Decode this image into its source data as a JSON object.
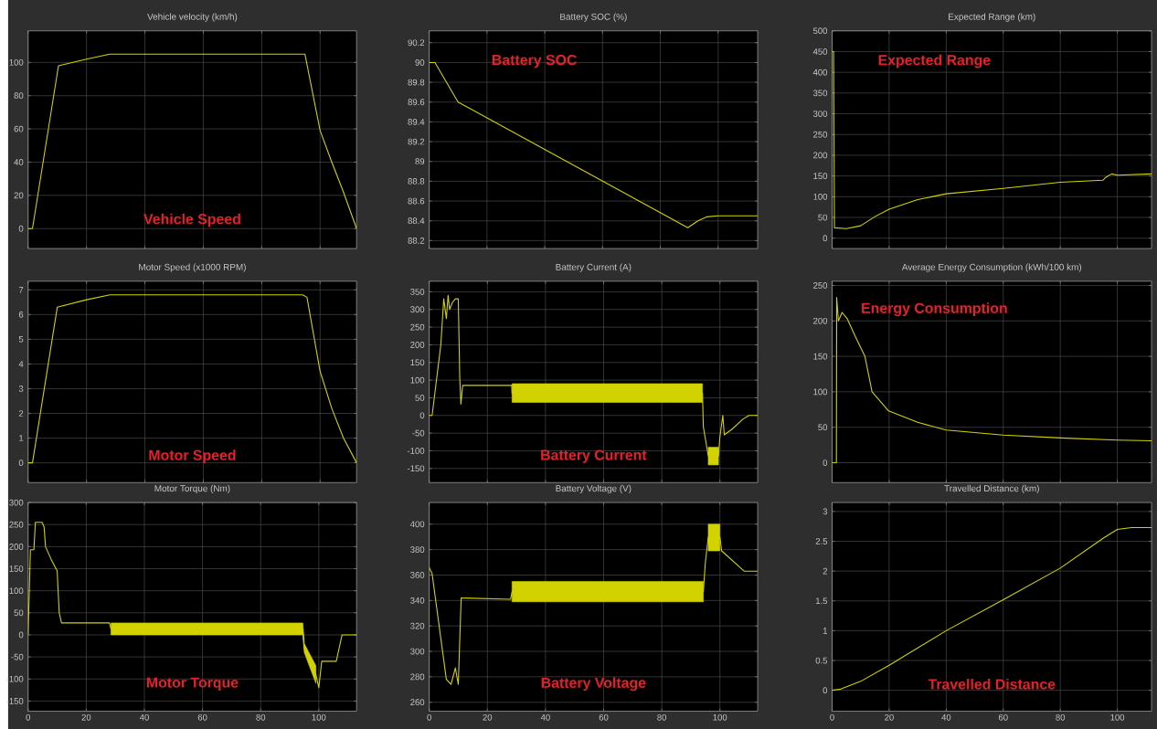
{
  "chart_data": [
    {
      "type": "line",
      "title": "Vehicle velocity (km/h)",
      "x": [
        0,
        1.5,
        10.4,
        20,
        28,
        94.8,
        100,
        104,
        108,
        112.5
      ],
      "series": [
        {
          "color": "#d2d200",
          "values": [
            0,
            0,
            98,
            102,
            105,
            105,
            59,
            40,
            22,
            0
          ]
        }
      ],
      "xlim": [
        0,
        112.5
      ],
      "ylim": [
        -12,
        119
      ],
      "xticks": [
        0,
        20,
        40,
        60,
        80,
        100
      ],
      "yticks": [
        0,
        20,
        40,
        60,
        80,
        100
      ],
      "tick_labels": "y",
      "grid": true,
      "annotations": [
        "Vehicle Speed"
      ]
    },
    {
      "type": "line",
      "title": "Battery SOC (%)",
      "x": [
        0,
        2,
        5,
        10,
        89.5,
        93,
        96,
        100,
        113.7
      ],
      "series": [
        {
          "color": "#d2d200",
          "values": [
            90,
            90,
            89.85,
            89.6,
            88.33,
            88.4,
            88.44,
            88.45,
            88.45
          ]
        }
      ],
      "xlim": [
        0,
        113.7
      ],
      "ylim": [
        88.12,
        90.32
      ],
      "xticks": [
        0,
        20,
        40,
        60,
        80,
        100
      ],
      "yticks": [
        88.2,
        88.4,
        88.6,
        88.8,
        89,
        89.2,
        89.4,
        89.6,
        89.8,
        90,
        90.2
      ],
      "tick_labels": "y",
      "grid": true,
      "annotations": [
        "Battery SOC"
      ]
    },
    {
      "type": "line",
      "title": "Expected Range (km)",
      "x": [
        0,
        0.5,
        0.8,
        5,
        10,
        15,
        20,
        30,
        40,
        60,
        80,
        95,
        96,
        98,
        100,
        112
      ],
      "series": [
        {
          "color": "#d2d200",
          "values": [
            450,
            450,
            25,
            23,
            30,
            52,
            70,
            93,
            107,
            120,
            135,
            140,
            147,
            155,
            152,
            155
          ]
        }
      ],
      "xlim": [
        0,
        112
      ],
      "ylim": [
        -25,
        500
      ],
      "xticks": [
        0,
        20,
        40,
        60,
        80,
        100
      ],
      "yticks": [
        0,
        50,
        100,
        150,
        200,
        250,
        300,
        350,
        400,
        450,
        500
      ],
      "tick_labels": "y",
      "grid": true,
      "annotations": [
        "Expected Range"
      ]
    },
    {
      "type": "line",
      "title": "Motor Speed (x1000 RPM)",
      "x": [
        0,
        1.5,
        10,
        20,
        28,
        94,
        95.5,
        100,
        104,
        108,
        112.5
      ],
      "series": [
        {
          "color": "#d2d200",
          "values": [
            0,
            0,
            6.3,
            6.6,
            6.8,
            6.8,
            6.7,
            3.7,
            2.2,
            1,
            0
          ]
        }
      ],
      "xlim": [
        0,
        112.5
      ],
      "ylim": [
        -0.8,
        7.35
      ],
      "xticks": [
        0,
        20,
        40,
        60,
        80,
        100
      ],
      "yticks": [
        0,
        1,
        2,
        3,
        4,
        5,
        6,
        7
      ],
      "tick_labels": "y",
      "grid": true,
      "annotations": [
        "Motor Speed"
      ]
    },
    {
      "type": "line",
      "title": "Battery Current (A)",
      "x": [
        0,
        1,
        4,
        5,
        5.9,
        6.5,
        7,
        8,
        9,
        10,
        10.5,
        10.9,
        11.5,
        28.4,
        28.5,
        94,
        94.3,
        96,
        99.5,
        100,
        101,
        101.5,
        104,
        108,
        110,
        113
      ],
      "series": [
        {
          "color": "#d2d200",
          "values": [
            0,
            0,
            200,
            330,
            274,
            340,
            300,
            320,
            330,
            330,
            110,
            32,
            85,
            85,
            63,
            63,
            -32,
            -115,
            -115,
            -60,
            0,
            -55,
            -40,
            -10,
            0,
            0
          ],
          "lower": [
            null,
            null,
            null,
            null,
            null,
            null,
            null,
            null,
            null,
            null,
            null,
            null,
            null,
            null,
            37,
            37,
            null,
            -140,
            -140,
            null,
            null,
            null,
            null,
            null,
            null,
            null
          ],
          "upper": [
            null,
            null,
            null,
            null,
            null,
            null,
            null,
            null,
            null,
            null,
            null,
            null,
            null,
            null,
            90,
            90,
            null,
            -90,
            -90,
            null,
            null,
            null,
            null,
            null,
            null,
            null
          ]
        }
      ],
      "xlim": [
        0,
        113
      ],
      "ylim": [
        -190,
        380
      ],
      "xticks": [
        0,
        20,
        40,
        60,
        80,
        100
      ],
      "yticks": [
        -150,
        -100,
        -50,
        0,
        50,
        100,
        150,
        200,
        250,
        300,
        350
      ],
      "tick_labels": "y",
      "grid": true,
      "annotations": [
        "Battery Current"
      ]
    },
    {
      "type": "line",
      "title": "Average Energy Consumption (kWh/100 km)",
      "x": [
        0,
        1.5,
        1.6,
        2.2,
        3.5,
        5.3,
        8.5,
        11.5,
        14,
        19.8,
        30,
        40,
        60,
        80,
        100,
        112
      ],
      "series": [
        {
          "color": "#d2d200",
          "values": [
            0,
            0,
            233,
            200,
            212,
            203,
            175,
            150,
            100,
            73,
            57,
            46,
            39,
            35,
            32,
            31
          ]
        }
      ],
      "xlim": [
        0,
        112
      ],
      "ylim": [
        -28,
        256
      ],
      "xticks": [
        0,
        20,
        40,
        60,
        80,
        100
      ],
      "yticks": [
        0,
        50,
        100,
        150,
        200,
        250
      ],
      "tick_labels": "y",
      "grid": true,
      "annotations": [
        "Energy Consumption"
      ]
    },
    {
      "type": "line",
      "title": "Motor Torque (Nm)",
      "x": [
        0,
        0.8,
        2,
        2.5,
        4.8,
        5.5,
        6,
        8,
        10,
        10.7,
        11.5,
        28,
        28.5,
        94.5,
        95,
        99,
        100,
        101,
        106,
        108,
        113
      ],
      "series": [
        {
          "color": "#d2d200",
          "values": [
            0,
            193,
            193,
            255,
            255,
            245,
            200,
            170,
            145,
            50,
            27,
            27,
            14,
            14,
            -30,
            -90,
            -120,
            -60,
            -60,
            0,
            0
          ],
          "lower": [
            null,
            null,
            null,
            null,
            null,
            null,
            null,
            null,
            null,
            null,
            null,
            null,
            0,
            0,
            -40,
            -110,
            null,
            null,
            null,
            null,
            null
          ],
          "upper": [
            null,
            null,
            null,
            null,
            null,
            null,
            null,
            null,
            null,
            null,
            null,
            null,
            27,
            27,
            -20,
            -70,
            null,
            null,
            null,
            null,
            null
          ]
        }
      ],
      "xlim": [
        0,
        113
      ],
      "ylim": [
        -173,
        300
      ],
      "xticks": [
        0,
        20,
        40,
        60,
        80,
        100
      ],
      "yticks": [
        -150,
        -100,
        -50,
        0,
        50,
        100,
        150,
        200,
        250,
        300
      ],
      "grid": true,
      "annotations": [
        "Motor Torque"
      ]
    },
    {
      "type": "line",
      "title": "Battery Voltage (V)",
      "x": [
        0,
        1,
        5.9,
        7.5,
        9,
        10,
        11,
        28,
        28.5,
        94.3,
        95,
        96,
        100,
        100.6,
        108.4,
        113
      ],
      "series": [
        {
          "color": "#d2d200",
          "values": [
            366,
            361,
            278,
            274,
            287,
            274,
            342,
            341,
            347,
            347,
            370,
            390,
            390,
            379,
            363,
            363
          ],
          "lower": [
            null,
            null,
            null,
            null,
            null,
            null,
            null,
            null,
            339,
            339,
            null,
            379,
            379,
            null,
            null,
            null
          ],
          "upper": [
            null,
            null,
            null,
            null,
            null,
            null,
            null,
            null,
            355,
            355,
            null,
            400,
            400,
            null,
            null,
            null
          ]
        }
      ],
      "xlim": [
        0,
        113
      ],
      "ylim": [
        253,
        417
      ],
      "xticks": [
        0,
        20,
        40,
        60,
        80,
        100
      ],
      "yticks": [
        260,
        280,
        300,
        320,
        340,
        360,
        380,
        400
      ],
      "grid": true,
      "annotations": [
        "Battery Voltage"
      ]
    },
    {
      "type": "line",
      "title": "Travelled Distance (km)",
      "x": [
        0,
        3,
        10,
        20,
        40,
        60,
        80,
        95,
        100,
        105,
        112
      ],
      "series": [
        {
          "color": "#d2d200",
          "values": [
            0,
            0.02,
            0.15,
            0.42,
            1.0,
            1.52,
            2.05,
            2.55,
            2.7,
            2.73,
            2.73
          ]
        }
      ],
      "xlim": [
        0,
        112
      ],
      "ylim": [
        -0.35,
        3.15
      ],
      "xticks": [
        0,
        20,
        40,
        60,
        80,
        100
      ],
      "yticks": [
        0,
        0.5,
        1,
        1.5,
        2,
        2.5,
        3
      ],
      "grid": true,
      "annotations": [
        "Travelled Distance"
      ]
    }
  ]
}
